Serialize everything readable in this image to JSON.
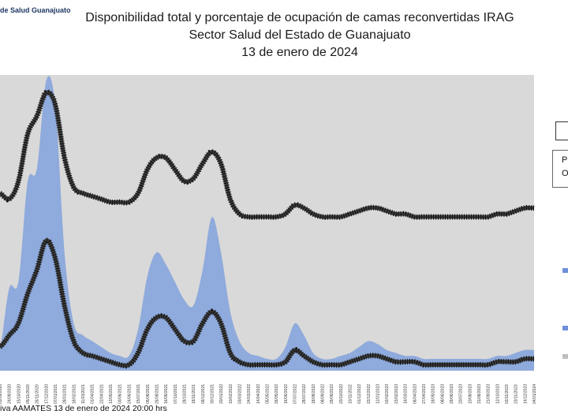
{
  "header": {
    "corner_label": "de Salud Guanajuato",
    "title_lines": [
      "Disponibilidad total y porcentaje de ocupación de camas reconvertidas IRAG",
      "Sector Salud del Estado de Guanajuato",
      "13 de enero de 2024"
    ]
  },
  "footer": {
    "source": "iva AAMATES 13 de enero de 2024 20:00 hrs"
  },
  "legend": {
    "partial_lines": [
      "P",
      "O"
    ]
  },
  "colors": {
    "plot_bg": "#d9d9d9",
    "occupied_fill": "#8faadc",
    "line": "#3a3a3a",
    "legend_marker_blue": "#6f8fd8"
  },
  "chart_data": {
    "type": "area",
    "title": "Disponibilidad total y porcentaje de ocupación de camas reconvertidas IRAG",
    "subtitle": "Sector Salud del Estado de Guanajuato — 13 de enero de 2024",
    "x_labels": [
      "03/09/2020",
      "24/09/2020",
      "15/10/2020",
      "05/11/2020",
      "26/11/2020",
      "17/12/2020",
      "07/01/2021",
      "28/01/2021",
      "18/02/2021",
      "11/03/2021",
      "01/04/2021",
      "22/04/2021",
      "13/05/2021",
      "03/06/2021",
      "24/06/2021",
      "15/07/2021",
      "05/08/2021",
      "26/08/2021",
      "16/09/2021",
      "07/10/2021",
      "28/10/2021",
      "18/11/2021",
      "09/12/2021",
      "30/12/2021",
      "20/01/2022",
      "10/02/2022",
      "03/03/2022",
      "24/03/2022",
      "14/04/2022",
      "05/05/2022",
      "26/05/2022",
      "16/06/2022",
      "07/07/2022",
      "28/07/2022",
      "18/08/2022",
      "08/09/2022",
      "29/09/2022",
      "20/10/2022",
      "10/11/2022",
      "01/12/2022",
      "22/12/2022",
      "12/01/2023",
      "02/02/2023",
      "23/02/2023",
      "16/03/2023",
      "06/04/2023",
      "27/04/2023",
      "18/05/2023",
      "08/06/2023",
      "29/06/2023",
      "20/07/2023",
      "10/08/2023",
      "31/08/2023",
      "21/09/2023",
      "12/10/2023",
      "02/11/2023",
      "23/11/2023",
      "14/12/2023",
      "04/01/2024"
    ],
    "series": [
      {
        "kind": "area",
        "values": [
          8,
          28,
          30,
          64,
          68,
          98,
          90,
          40,
          16,
          12,
          10,
          8,
          6,
          5,
          5,
          14,
          32,
          40,
          36,
          30,
          24,
          22,
          34,
          52,
          40,
          20,
          10,
          6,
          5,
          4,
          4,
          8,
          16,
          12,
          6,
          4,
          4,
          5,
          6,
          8,
          10,
          9,
          7,
          6,
          5,
          5,
          4,
          4,
          4,
          4,
          4,
          4,
          4,
          4,
          5,
          5,
          6,
          7,
          7
        ]
      },
      {
        "kind": "upper-line",
        "values": [
          60,
          58,
          64,
          80,
          86,
          94,
          90,
          72,
          62,
          60,
          59,
          58,
          57,
          57,
          57,
          60,
          68,
          72,
          72,
          68,
          64,
          65,
          70,
          74,
          70,
          58,
          53,
          52,
          52,
          52,
          52,
          53,
          56,
          55,
          53,
          52,
          52,
          52,
          53,
          54,
          55,
          55,
          54,
          53,
          53,
          52,
          52,
          52,
          52,
          52,
          52,
          52,
          52,
          52,
          53,
          53,
          54,
          55,
          55
        ]
      },
      {
        "kind": "lower-line",
        "values": [
          8,
          12,
          16,
          26,
          34,
          44,
          38,
          22,
          10,
          6,
          5,
          4,
          3,
          2,
          2,
          6,
          14,
          18,
          18,
          14,
          10,
          10,
          16,
          20,
          16,
          6,
          3,
          2,
          2,
          2,
          2,
          3,
          7,
          5,
          3,
          2,
          2,
          2,
          3,
          4,
          5,
          5,
          4,
          3,
          3,
          3,
          2,
          2,
          2,
          2,
          2,
          2,
          2,
          2,
          3,
          3,
          3,
          4,
          4
        ]
      }
    ]
  }
}
